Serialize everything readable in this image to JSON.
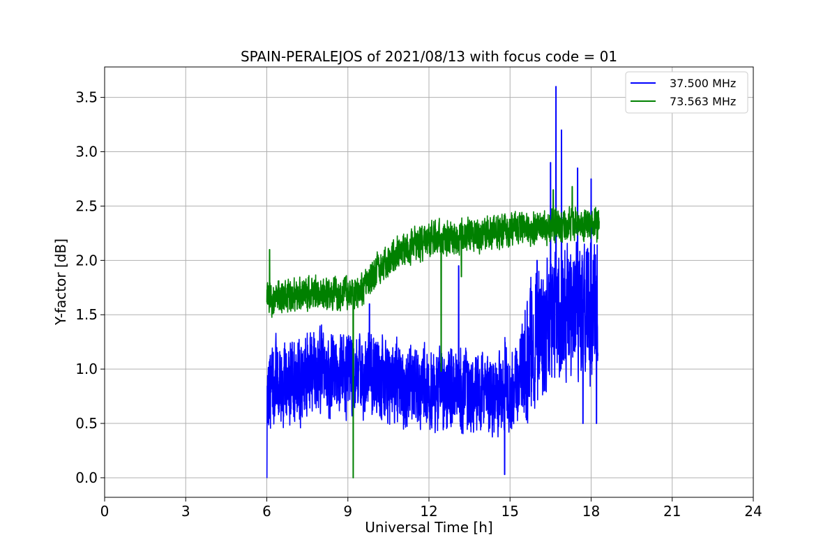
{
  "chart_data": {
    "type": "line",
    "title": "SPAIN-PERALEJOS of 2021/08/13 with focus code = 01",
    "xlabel": "Universal Time [h]",
    "ylabel": "Y-factor [dB]",
    "xlim": [
      0,
      24
    ],
    "ylim": [
      -0.18,
      3.78
    ],
    "x_ticks": [
      0,
      3,
      6,
      9,
      12,
      15,
      18,
      21,
      24
    ],
    "x_tick_labels": [
      "0",
      "3",
      "6",
      "9",
      "12",
      "15",
      "18",
      "21",
      "24"
    ],
    "y_ticks": [
      0.0,
      0.5,
      1.0,
      1.5,
      2.0,
      2.5,
      3.0,
      3.5
    ],
    "y_tick_labels": [
      "0.0",
      "0.5",
      "1.0",
      "1.5",
      "2.0",
      "2.5",
      "3.0",
      "3.5"
    ],
    "grid": true,
    "legend_position": "top-right",
    "series": [
      {
        "name": "37.500 MHz",
        "color": "#0000ff",
        "x_range": [
          6.0,
          18.25
        ],
        "trend": [
          [
            6.0,
            0.75
          ],
          [
            6.3,
            0.85
          ],
          [
            7.0,
            0.9
          ],
          [
            8.0,
            0.95
          ],
          [
            9.0,
            0.95
          ],
          [
            10.0,
            0.95
          ],
          [
            11.0,
            0.85
          ],
          [
            12.0,
            0.8
          ],
          [
            13.0,
            0.8
          ],
          [
            14.0,
            0.75
          ],
          [
            15.0,
            0.85
          ],
          [
            15.5,
            1.0
          ],
          [
            16.0,
            1.3
          ],
          [
            16.5,
            1.45
          ],
          [
            17.0,
            1.5
          ],
          [
            17.5,
            1.55
          ],
          [
            18.0,
            1.5
          ],
          [
            18.25,
            1.5
          ]
        ],
        "noise_amplitude": 0.3,
        "extrema": [
          [
            6.0,
            0.0
          ],
          [
            9.8,
            1.6
          ],
          [
            13.1,
            1.95
          ],
          [
            14.8,
            0.03
          ],
          [
            16.0,
            2.0
          ],
          [
            16.5,
            2.9
          ],
          [
            16.7,
            3.6
          ],
          [
            16.9,
            3.2
          ],
          [
            17.5,
            2.85
          ],
          [
            17.7,
            0.5
          ],
          [
            18.0,
            2.75
          ],
          [
            18.2,
            0.5
          ]
        ]
      },
      {
        "name": "73.563 MHz",
        "color": "#008000",
        "x_range": [
          6.0,
          18.3
        ],
        "trend": [
          [
            6.0,
            1.65
          ],
          [
            7.0,
            1.68
          ],
          [
            8.0,
            1.7
          ],
          [
            9.0,
            1.7
          ],
          [
            9.5,
            1.72
          ],
          [
            10.0,
            1.9
          ],
          [
            11.0,
            2.1
          ],
          [
            12.0,
            2.18
          ],
          [
            13.0,
            2.22
          ],
          [
            14.0,
            2.25
          ],
          [
            15.0,
            2.28
          ],
          [
            16.0,
            2.3
          ],
          [
            17.0,
            2.32
          ],
          [
            17.5,
            2.35
          ],
          [
            18.3,
            2.3
          ]
        ],
        "noise_amplitude": 0.12,
        "extrema": [
          [
            6.1,
            2.1
          ],
          [
            9.2,
            0.0
          ],
          [
            12.45,
            0.98
          ],
          [
            13.2,
            1.85
          ],
          [
            16.6,
            2.65
          ],
          [
            17.3,
            2.68
          ]
        ]
      }
    ]
  }
}
